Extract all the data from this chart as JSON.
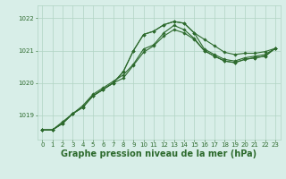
{
  "x": [
    0,
    1,
    2,
    3,
    4,
    5,
    6,
    7,
    8,
    9,
    10,
    11,
    12,
    13,
    14,
    15,
    16,
    17,
    18,
    19,
    20,
    21,
    22,
    23
  ],
  "line1": [
    1018.55,
    1018.55,
    1018.75,
    1019.05,
    1019.25,
    1019.6,
    1019.8,
    1020.0,
    1020.35,
    1021.0,
    1021.5,
    1021.6,
    1021.8,
    1021.9,
    1021.85,
    1021.55,
    1021.35,
    1021.15,
    1020.95,
    1020.88,
    1020.92,
    1020.92,
    1020.97,
    1021.07
  ],
  "line2": [
    1018.55,
    1018.55,
    1018.75,
    1019.05,
    1019.25,
    1019.6,
    1019.8,
    1020.0,
    1020.35,
    1021.0,
    1021.5,
    1021.6,
    1021.8,
    1021.9,
    1021.85,
    1021.55,
    1021.05,
    1020.88,
    1020.73,
    1020.68,
    1020.78,
    1020.83,
    1020.88,
    1021.07
  ],
  "line3": [
    1018.55,
    1018.55,
    1018.75,
    1019.05,
    1019.25,
    1019.6,
    1019.8,
    1020.0,
    1020.15,
    1020.55,
    1020.95,
    1021.15,
    1021.45,
    1021.65,
    1021.55,
    1021.35,
    1021.0,
    1020.83,
    1020.68,
    1020.63,
    1020.73,
    1020.78,
    1020.83,
    1021.07
  ],
  "line4": [
    1018.55,
    1018.55,
    1018.8,
    1019.05,
    1019.3,
    1019.65,
    1019.85,
    1020.05,
    1020.25,
    1020.58,
    1021.05,
    1021.18,
    1021.55,
    1021.78,
    1021.65,
    1021.38,
    1021.0,
    1020.83,
    1020.68,
    1020.63,
    1020.73,
    1020.78,
    1020.83,
    1021.07
  ],
  "bg_color": "#d8eee8",
  "line_color": "#2d6a2d",
  "grid_color": "#b0d4c4",
  "xlabel": "Graphe pression niveau de la mer (hPa)",
  "ytick_labels": [
    "1019",
    "1020",
    "1021",
    "1022"
  ],
  "yticks": [
    1019,
    1020,
    1021,
    1022
  ],
  "ylim": [
    1018.25,
    1022.4
  ],
  "xlim": [
    -0.5,
    23.5
  ],
  "xticks": [
    0,
    1,
    2,
    3,
    4,
    5,
    6,
    7,
    8,
    9,
    10,
    11,
    12,
    13,
    14,
    15,
    16,
    17,
    18,
    19,
    20,
    21,
    22,
    23
  ],
  "tick_fontsize": 5.0,
  "xlabel_fontsize": 7.0,
  "marker": "D",
  "markersize": 1.8,
  "linewidth": 0.8
}
